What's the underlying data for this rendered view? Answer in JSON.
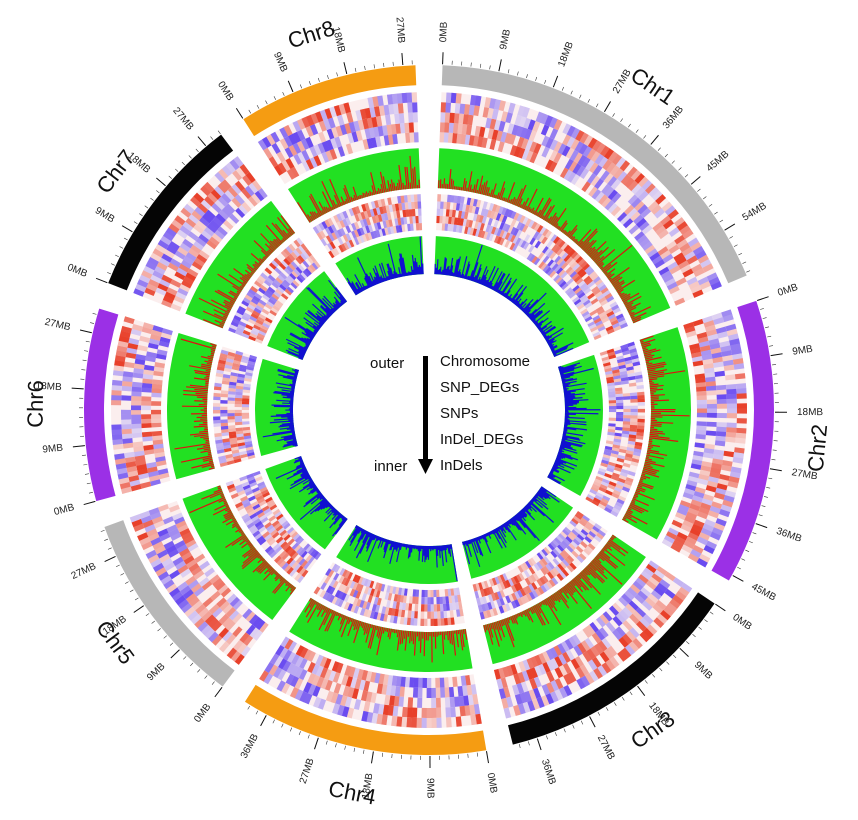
{
  "chromosomes": [
    {
      "name": "Chr1",
      "length_mb": 62,
      "color": "#b7b7b7",
      "ticks": [
        "0MB",
        "9MB",
        "18MB",
        "27MB",
        "36MB",
        "45MB",
        "54MB"
      ],
      "tick_values": [
        0,
        9,
        18,
        27,
        36,
        45,
        54
      ]
    },
    {
      "name": "Chr2",
      "length_mb": 46,
      "color": "#9b30e6",
      "ticks": [
        "0MB",
        "9MB",
        "18MB",
        "27MB",
        "36MB",
        "45MB"
      ],
      "tick_values": [
        0,
        9,
        18,
        27,
        36,
        45
      ]
    },
    {
      "name": "Chr3",
      "length_mb": 40,
      "color": "#050505",
      "ticks": [
        "0MB",
        "9MB",
        "18MB",
        "27MB",
        "36MB"
      ],
      "tick_values": [
        0,
        9,
        18,
        27,
        36
      ]
    },
    {
      "name": "Chr4",
      "length_mb": 40,
      "color": "#f59c12",
      "ticks": [
        "0MB",
        "9MB",
        "18MB",
        "27MB",
        "36MB"
      ],
      "tick_values": [
        0,
        9,
        18,
        27,
        36
      ]
    },
    {
      "name": "Chr5",
      "length_mb": 32,
      "color": "#b7b7b7",
      "ticks": [
        "0MB",
        "9MB",
        "18MB",
        "27MB"
      ],
      "tick_values": [
        0,
        9,
        18,
        27
      ]
    },
    {
      "name": "Chr6",
      "length_mb": 31,
      "color": "#9b30e6",
      "ticks": [
        "0MB",
        "9MB",
        "18MB",
        "27MB"
      ],
      "tick_values": [
        0,
        9,
        18,
        27
      ]
    },
    {
      "name": "Chr7",
      "length_mb": 30,
      "color": "#050505",
      "ticks": [
        "0MB",
        "9MB",
        "18MB",
        "27MB"
      ],
      "tick_values": [
        0,
        9,
        18,
        27
      ]
    },
    {
      "name": "Chr8",
      "length_mb": 29,
      "color": "#f59c12",
      "ticks": [
        "0MB",
        "9MB",
        "18MB",
        "27MB"
      ],
      "tick_values": [
        0,
        9,
        18,
        27
      ]
    }
  ],
  "tracks": [
    {
      "name": "Chromosome",
      "kind": "ideogram"
    },
    {
      "name": "SNP_DEGs",
      "kind": "heatmap",
      "low_color": "#6a4cf0",
      "high_color": "#e8402a"
    },
    {
      "name": "SNPs",
      "kind": "histogram",
      "bar_color": "#e01010",
      "background": "#22e022"
    },
    {
      "name": "InDel_DEGs",
      "kind": "heatmap",
      "low_color": "#6a4cf0",
      "high_color": "#e8402a"
    },
    {
      "name": "InDels",
      "kind": "histogram",
      "bar_color": "#1010d0",
      "background": "#22e022"
    }
  ],
  "legend": {
    "outer_label": "outer",
    "inner_label": "inner",
    "items": [
      "Chromosome",
      "SNP_DEGs",
      "SNPs",
      "InDel_DEGs",
      "InDels"
    ]
  }
}
